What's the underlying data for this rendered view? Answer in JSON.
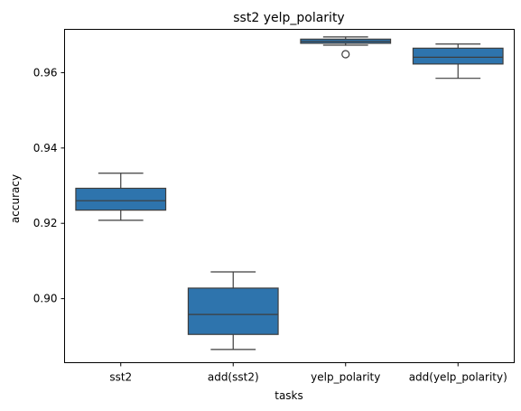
{
  "chart_data": {
    "type": "box",
    "title": "sst2 yelp_polarity",
    "xlabel": "tasks",
    "ylabel": "accuracy",
    "categories": [
      "sst2",
      "add(sst2)",
      "yelp_polarity",
      "add(yelp_polarity)"
    ],
    "ylim": [
      0.883,
      0.9715
    ],
    "yticks": [
      0.9,
      0.92,
      0.94,
      0.96
    ],
    "ytick_labels": [
      "0.90",
      "0.92",
      "0.94",
      "0.96"
    ],
    "grid": false,
    "box_color": "#2e74ad",
    "line_color": "#3d3d3d",
    "boxes": [
      {
        "category": "sst2",
        "whisker_low": 0.9208,
        "q1": 0.9235,
        "median": 0.926,
        "q3": 0.9293,
        "whisker_high": 0.9333,
        "outliers": []
      },
      {
        "category": "add(sst2)",
        "whisker_low": 0.8865,
        "q1": 0.8905,
        "median": 0.8958,
        "q3": 0.9028,
        "whisker_high": 0.9071,
        "outliers": []
      },
      {
        "category": "yelp_polarity",
        "whisker_low": 0.9673,
        "q1": 0.9678,
        "median": 0.9683,
        "q3": 0.9689,
        "whisker_high": 0.9695,
        "outliers": [
          0.9649
        ]
      },
      {
        "category": "add(yelp_polarity)",
        "whisker_low": 0.9585,
        "q1": 0.9623,
        "median": 0.9641,
        "q3": 0.9665,
        "whisker_high": 0.9676,
        "outliers": []
      }
    ]
  }
}
